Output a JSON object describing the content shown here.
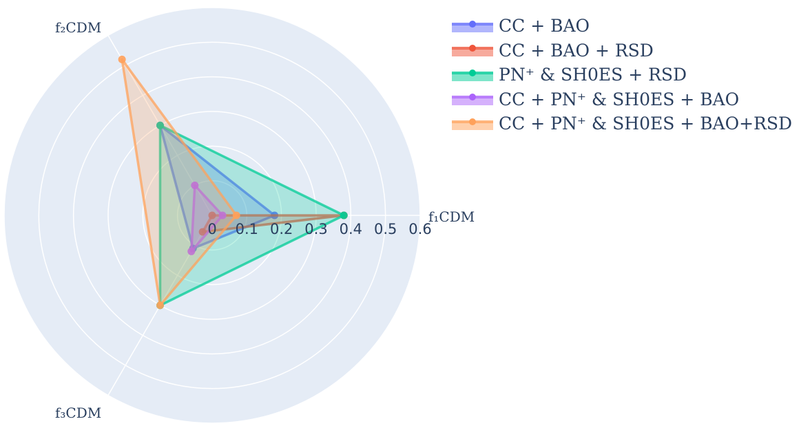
{
  "chart_data": {
    "type": "radar",
    "axes": [
      "f₁CDM",
      "f₂CDM",
      "f₃CDM"
    ],
    "radial_ticks": [
      "0",
      "0.1",
      "0.2",
      "0.3",
      "0.4",
      "0.5",
      "0.6"
    ],
    "radial_range": [
      0,
      0.6
    ],
    "grid": true,
    "legend_position": "top-right",
    "series": [
      {
        "name": "CC + BAO",
        "values": [
          0.18,
          0.3,
          0.11
        ],
        "color": "#636efa"
      },
      {
        "name": "CC + BAO + RSD",
        "values": [
          0.38,
          0.0,
          0.055
        ],
        "color": "#ef553b"
      },
      {
        "name": "PN⁺ & SH0ES + RSD",
        "values": [
          0.38,
          0.3,
          0.3
        ],
        "color": "#00cc96"
      },
      {
        "name": "CC + PN⁺ & SH0ES + BAO",
        "values": [
          0.03,
          0.1,
          0.12
        ],
        "color": "#ab63fa"
      },
      {
        "name": "CC + PN⁺ & SH0ES + BAO+RSD",
        "values": [
          0.07,
          0.52,
          0.3
        ],
        "color": "#ffa15a"
      }
    ]
  }
}
